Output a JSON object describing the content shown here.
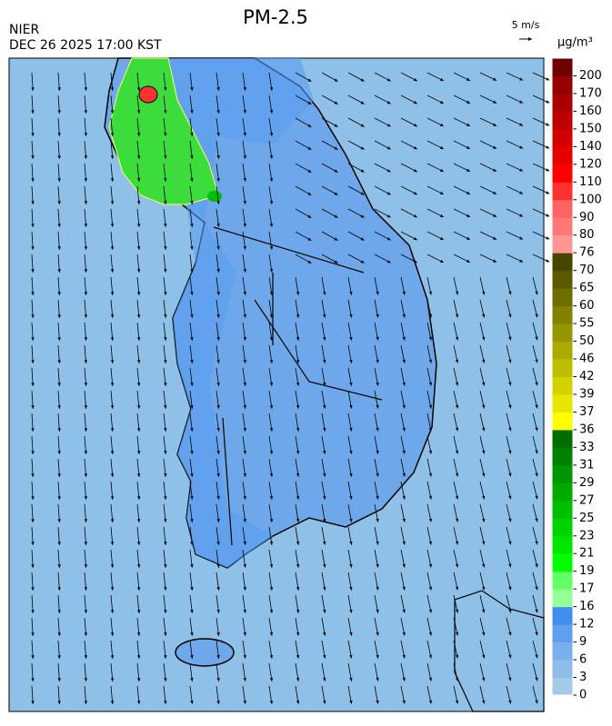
{
  "header": {
    "title": "PM-2.5",
    "agency": "NIER",
    "timestamp": "DEC 26 2025 17:00 KST",
    "wind_scale": "5 m/s"
  },
  "colorbar": {
    "unit": "μg/m³",
    "ticks": [
      0,
      3,
      6,
      9,
      12,
      16,
      17,
      19,
      21,
      23,
      25,
      27,
      29,
      31,
      33,
      36,
      37,
      39,
      42,
      46,
      50,
      55,
      60,
      65,
      70,
      76,
      80,
      90,
      100,
      110,
      120,
      140,
      150,
      160,
      170,
      200
    ],
    "colors": [
      "#a3cbe6",
      "#8ebde9",
      "#79b0ec",
      "#5f9fee",
      "#3f8ff0",
      "#96ff96",
      "#64ff64",
      "#00ff00",
      "#00e600",
      "#00d200",
      "#00be00",
      "#00aa00",
      "#009600",
      "#008200",
      "#006e00",
      "#ffff00",
      "#e6e600",
      "#d2d200",
      "#bebe00",
      "#aaaa00",
      "#969600",
      "#828200",
      "#6e6e00",
      "#5a5a00",
      "#464600",
      "#ff9696",
      "#ff7878",
      "#ff6464",
      "#ff3232",
      "#ff0000",
      "#e60000",
      "#d20000",
      "#be0000",
      "#aa0000",
      "#960000",
      "#6e0000"
    ]
  }
}
